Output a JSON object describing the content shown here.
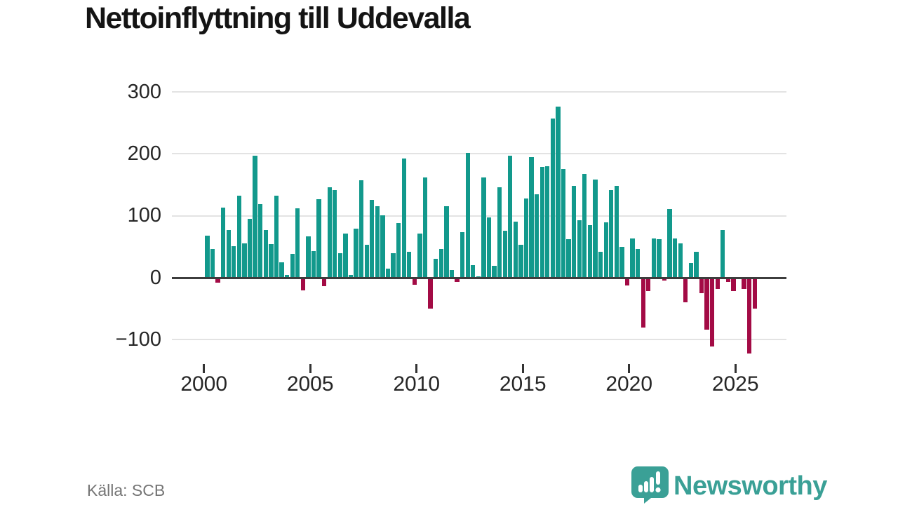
{
  "page": {
    "title": "Nettoinflyttning till Uddevalla",
    "source": "Källa: SCB"
  },
  "branding": {
    "name": "Newsworthy",
    "icon": "newsworthy-speech-bubble-chart-logo"
  },
  "colors": {
    "positive_bar": "#12998c",
    "negative_bar": "#a30b45",
    "brand_teal": "#3aa096",
    "grid": "#e3e3e3",
    "zero_axis": "#3d3d3d",
    "title_text": "#141414",
    "tick_text": "#262626",
    "muted_text": "#757575"
  },
  "chart_data": {
    "type": "bar",
    "title": "Nettoinflyttning till Uddevalla",
    "x_start": "2000-Q1",
    "x_frequency": "quarterly",
    "x_tick_years": [
      2000,
      2005,
      2010,
      2015,
      2020,
      2025
    ],
    "x_tick_labels": [
      "2000",
      "2005",
      "2010",
      "2015",
      "2020",
      "2025"
    ],
    "y_ticks": [
      300,
      200,
      100,
      0,
      -100
    ],
    "y_tick_labels": [
      "300",
      "200",
      "100",
      "0",
      "−100"
    ],
    "ylim": [
      -135,
      310
    ],
    "grid": "horizontal-only",
    "legend": "none",
    "values": [
      68,
      46,
      -8,
      113,
      77,
      51,
      133,
      56,
      95,
      197,
      119,
      77,
      54,
      133,
      25,
      5,
      38,
      112,
      -20,
      67,
      43,
      127,
      -14,
      146,
      141,
      40,
      71,
      4,
      79,
      157,
      53,
      126,
      115,
      101,
      15,
      40,
      88,
      192,
      42,
      -11,
      71,
      162,
      -50,
      31,
      46,
      116,
      12,
      -7,
      74,
      202,
      20,
      2,
      162,
      97,
      19,
      146,
      76,
      197,
      91,
      53,
      128,
      195,
      135,
      179,
      180,
      257,
      276,
      176,
      62,
      148,
      93,
      168,
      85,
      158,
      42,
      89,
      142,
      148,
      50,
      -13,
      63,
      46,
      -80,
      -22,
      63,
      62,
      -4,
      111,
      63,
      56,
      -40,
      24,
      42,
      -25,
      -84,
      -111,
      -18,
      77,
      -7,
      -22,
      -2,
      -18,
      -122,
      -50
    ]
  }
}
